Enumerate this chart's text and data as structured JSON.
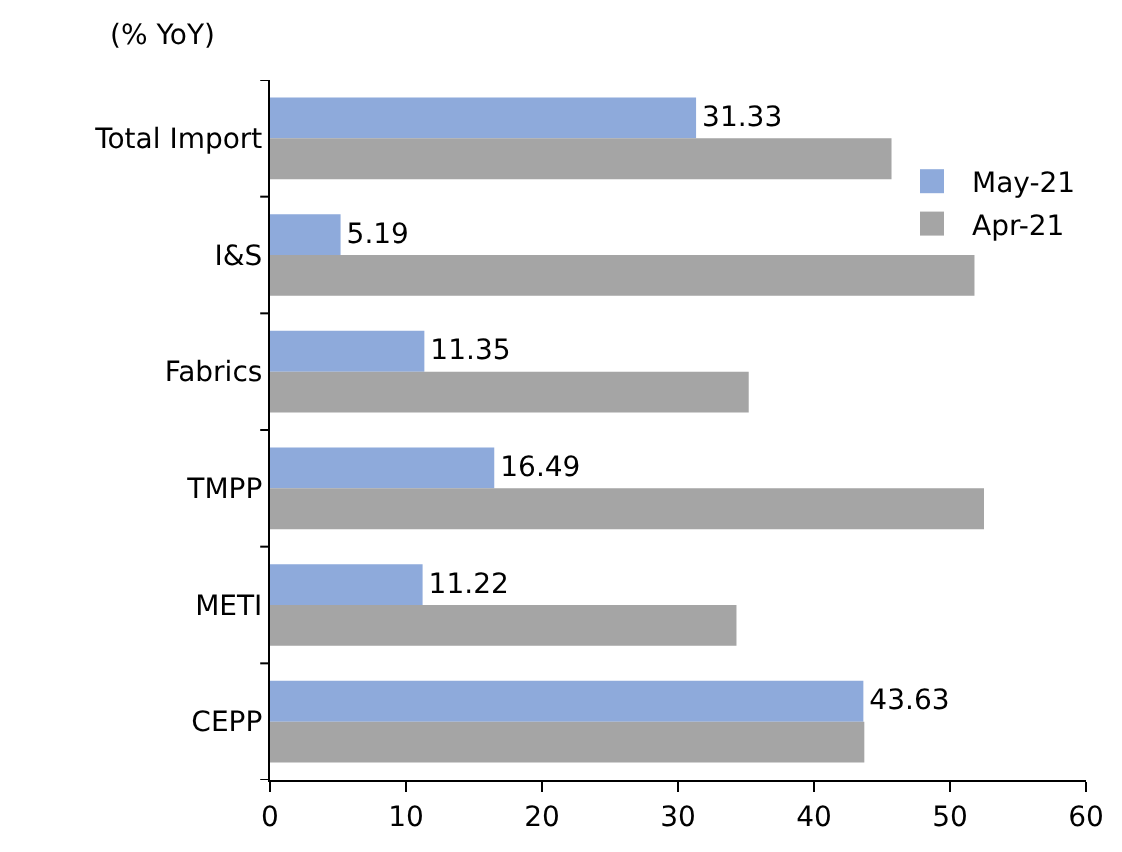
{
  "chart_data": {
    "type": "bar",
    "orientation": "horizontal",
    "categories": [
      "Total Import",
      "I&S",
      "Fabrics",
      "TMPP",
      "METI",
      "CEPP"
    ],
    "series": [
      {
        "name": "May-21",
        "color": "#8eaadb",
        "values": [
          31.33,
          5.19,
          11.35,
          16.49,
          11.22,
          43.63
        ],
        "value_labels": [
          "31.33",
          "5.19",
          "11.35",
          "16.49",
          "11.22",
          "43.63"
        ]
      },
      {
        "name": "Apr-21",
        "color": "#a5a5a5",
        "values": [
          45.7,
          51.8,
          35.2,
          52.5,
          34.3,
          43.7
        ]
      }
    ],
    "xlim": [
      0,
      60
    ],
    "xticks": [
      0,
      10,
      20,
      30,
      40,
      50,
      60
    ],
    "annotations": [
      "(% YoY)"
    ],
    "legend": "top right"
  }
}
